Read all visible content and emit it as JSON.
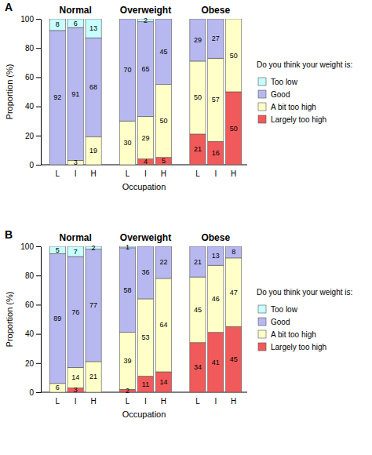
{
  "chart_data": [
    {
      "type": "bar",
      "title": "A",
      "stacked": true,
      "data_labels": true,
      "legend": "right",
      "legend_title": "Do you think your weight is:",
      "y_label": "Proportion (%)",
      "x_label": "Occupation",
      "groups": [
        "Normal",
        "Overweight",
        "Obese"
      ],
      "categories": [
        "L",
        "I",
        "H",
        "L",
        "I",
        "H",
        "L",
        "I",
        "H"
      ],
      "ylim": [
        0,
        100
      ],
      "yticks": [
        0,
        20,
        40,
        60,
        80,
        100
      ],
      "series": [
        {
          "name": "Too low",
          "color": "#c8ffff",
          "values": [
            8,
            6,
            13,
            null,
            2,
            null,
            null,
            null,
            null
          ]
        },
        {
          "name": "Good",
          "color": "#b8b8f0",
          "values": [
            92,
            91,
            68,
            70,
            65,
            45,
            29,
            27,
            null
          ]
        },
        {
          "name": "A bit too high",
          "color": "#ffffc8",
          "values": [
            null,
            3,
            19,
            30,
            29,
            50,
            50,
            57,
            50
          ]
        },
        {
          "name": "Largely too high",
          "color": "#f05a5a",
          "values": [
            null,
            null,
            null,
            null,
            4,
            5,
            21,
            16,
            50
          ]
        }
      ]
    },
    {
      "type": "bar",
      "title": "B",
      "stacked": true,
      "data_labels": true,
      "legend": "right",
      "legend_title": "Do you think your weight is:",
      "y_label": "Proportion (%)",
      "x_label": "Occupation",
      "groups": [
        "Normal",
        "Overweight",
        "Obese"
      ],
      "categories": [
        "L",
        "I",
        "H",
        "L",
        "I",
        "H",
        "L",
        "I",
        "H"
      ],
      "ylim": [
        0,
        100
      ],
      "yticks": [
        0,
        20,
        40,
        60,
        80,
        100
      ],
      "series": [
        {
          "name": "Too low",
          "color": "#c8ffff",
          "values": [
            5,
            7,
            2,
            1,
            null,
            null,
            null,
            null,
            null
          ]
        },
        {
          "name": "Good",
          "color": "#b8b8f0",
          "values": [
            89,
            76,
            77,
            58,
            36,
            22,
            21,
            13,
            8
          ]
        },
        {
          "name": "A bit too high",
          "color": "#ffffc8",
          "values": [
            6,
            14,
            21,
            39,
            53,
            64,
            45,
            46,
            47
          ]
        },
        {
          "name": "Largely too high",
          "color": "#f05a5a",
          "values": [
            null,
            3,
            null,
            2,
            11,
            14,
            34,
            41,
            45
          ]
        }
      ]
    }
  ]
}
